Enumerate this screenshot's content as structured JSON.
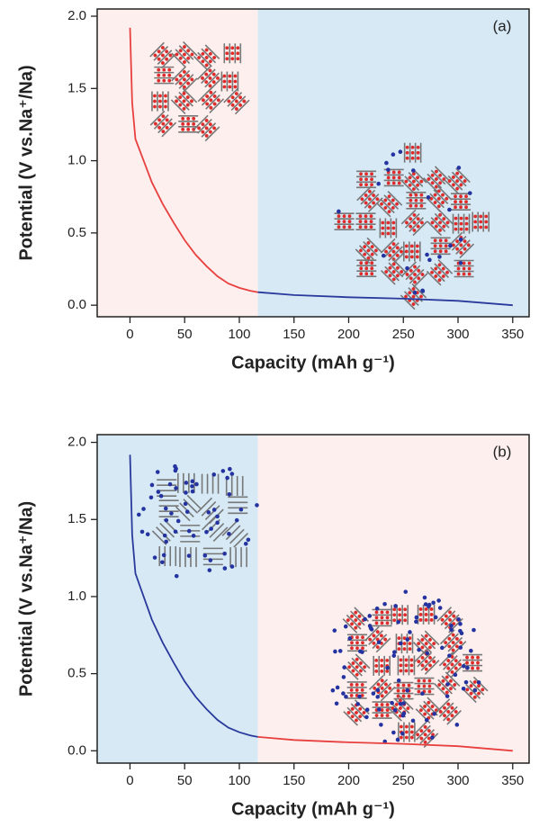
{
  "chart_data": [
    {
      "type": "line",
      "annotation": "(a)",
      "x_label": "Capacity (mAh g⁻¹)",
      "y_label": "Potential (V vs.Na⁺/Na)",
      "xlim": [
        -30,
        365
      ],
      "ylim": [
        -0.08,
        2.05
      ],
      "xticks": [
        0,
        50,
        100,
        150,
        200,
        250,
        300,
        350
      ],
      "yticks": [
        {
          "value": 0,
          "label": "0.0"
        },
        {
          "value": 0.5,
          "label": "0.5"
        },
        {
          "value": 1,
          "label": "1.0"
        },
        {
          "value": 1.5,
          "label": "1.5"
        },
        {
          "value": 2,
          "label": "2.0"
        }
      ],
      "regions": [
        {
          "xlim": [
            -30,
            117
          ],
          "color": "#fcefee"
        },
        {
          "xlim": [
            117,
            365
          ],
          "color": "#d6e9f5"
        }
      ],
      "series": [
        {
          "color": "#e8403f",
          "x": [
            0,
            2,
            5,
            10,
            20,
            30,
            40,
            50,
            60,
            70,
            80,
            90,
            100,
            110,
            117
          ],
          "values": [
            1.92,
            1.4,
            1.15,
            1.05,
            0.85,
            0.7,
            0.57,
            0.45,
            0.35,
            0.27,
            0.2,
            0.15,
            0.12,
            0.1,
            0.09
          ]
        },
        {
          "color": "#2a3a9c",
          "x": [
            117,
            150,
            200,
            250,
            300,
            350
          ],
          "values": [
            0.09,
            0.07,
            0.055,
            0.045,
            0.03,
            0.0
          ]
        }
      ]
    },
    {
      "type": "line",
      "annotation": "(b)",
      "x_label": "Capacity (mAh g⁻¹)",
      "y_label": "Potential (V vs.Na⁺/Na)",
      "xlim": [
        -30,
        365
      ],
      "ylim": [
        -0.08,
        2.05
      ],
      "xticks": [
        0,
        50,
        100,
        150,
        200,
        250,
        300,
        350
      ],
      "yticks": [
        {
          "value": 0,
          "label": "0.0"
        },
        {
          "value": 0.5,
          "label": "0.5"
        },
        {
          "value": 1,
          "label": "1.0"
        },
        {
          "value": 1.5,
          "label": "1.5"
        },
        {
          "value": 2,
          "label": "2.0"
        }
      ],
      "regions": [
        {
          "xlim": [
            -30,
            117
          ],
          "color": "#d6e9f5"
        },
        {
          "xlim": [
            117,
            365
          ],
          "color": "#fcefee"
        }
      ],
      "series": [
        {
          "color": "#2a3a9c",
          "x": [
            0,
            2,
            5,
            10,
            20,
            30,
            40,
            50,
            60,
            70,
            80,
            90,
            100,
            110,
            117
          ],
          "values": [
            1.92,
            1.4,
            1.15,
            1.05,
            0.85,
            0.7,
            0.57,
            0.45,
            0.35,
            0.27,
            0.2,
            0.15,
            0.12,
            0.1,
            0.09
          ]
        },
        {
          "color": "#e8403f",
          "x": [
            117,
            150,
            200,
            250,
            300,
            350
          ],
          "values": [
            0.09,
            0.07,
            0.055,
            0.045,
            0.03,
            0.0
          ]
        }
      ]
    }
  ]
}
